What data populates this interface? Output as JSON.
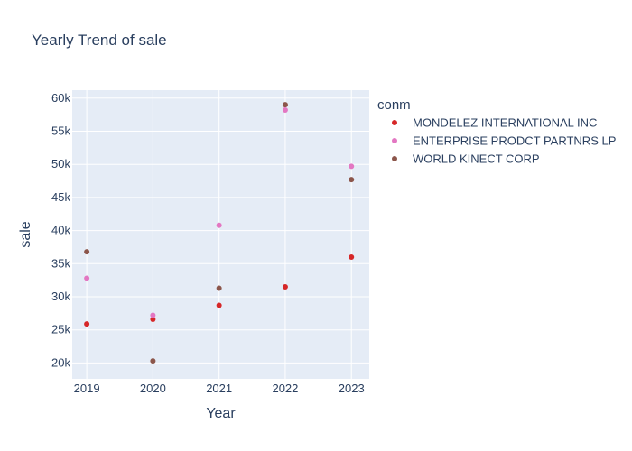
{
  "chart_data": {
    "type": "scatter",
    "title": "Yearly Trend of sale",
    "xlabel": "Year",
    "ylabel": "sale",
    "x_ticks": [
      "2019",
      "2020",
      "2021",
      "2022",
      "2023"
    ],
    "y_ticks": [
      "20k",
      "25k",
      "30k",
      "35k",
      "40k",
      "45k",
      "50k",
      "55k",
      "60k"
    ],
    "y_tick_values": [
      20000,
      25000,
      30000,
      35000,
      40000,
      45000,
      50000,
      55000,
      60000
    ],
    "xlim": [
      2018.78,
      2023.27
    ],
    "ylim": [
      17600,
      61200
    ],
    "grid": true,
    "legend_title": "conm",
    "legend_position": "right",
    "series": [
      {
        "name": "MONDELEZ INTERNATIONAL INC",
        "color": "#d62728",
        "x": [
          2019,
          2020,
          2021,
          2022,
          2023
        ],
        "y": [
          25900,
          26600,
          28700,
          31500,
          36000
        ]
      },
      {
        "name": "ENTERPRISE PRODCT PARTNRS LP",
        "color": "#e377c2",
        "x": [
          2019,
          2020,
          2021,
          2022,
          2023
        ],
        "y": [
          32800,
          27200,
          40800,
          58200,
          49700
        ]
      },
      {
        "name": "WORLD KINECT CORP",
        "color": "#8c564b",
        "x": [
          2019,
          2020,
          2021,
          2022,
          2023
        ],
        "y": [
          36800,
          20300,
          31300,
          59000,
          47700
        ]
      }
    ]
  }
}
